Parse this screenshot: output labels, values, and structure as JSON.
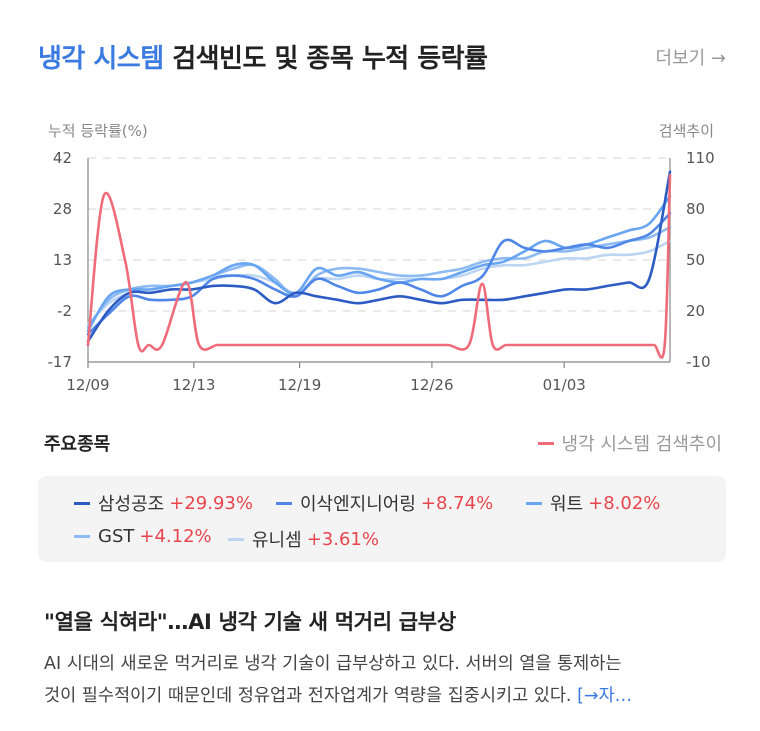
{
  "header": {
    "title_accent": "냉각 시스템",
    "title_rest": "검색빈도 및 종목 누적 등락률",
    "more_label": "더보기 →"
  },
  "chart_data": {
    "type": "line",
    "left_axis_label": "누적 등락률(%)",
    "right_axis_label": "검색추이",
    "left_ticks": [
      "42",
      "28",
      "13",
      "-2",
      "-17"
    ],
    "right_ticks": [
      "110",
      "80",
      "50",
      "20",
      "-10"
    ],
    "ylim_left": [
      -17,
      42
    ],
    "ylim_right": [
      -10,
      110
    ],
    "x_tick_labels": [
      "12/09",
      "12/13",
      "12/19",
      "12/26",
      "01/03"
    ],
    "x_tick_index": [
      0,
      4,
      8,
      13,
      18
    ],
    "grid": true,
    "search_series": {
      "name": "냉각 시스템 검색추이",
      "color": "#ef6b7a",
      "values": [
        0,
        88,
        50,
        0,
        0,
        0,
        37,
        0,
        0,
        0,
        0,
        0,
        0,
        0,
        0,
        0,
        0,
        0,
        0,
        0,
        0,
        36,
        0,
        0,
        0,
        0,
        0,
        0,
        0,
        0,
        0,
        0,
        0,
        0,
        0,
        0,
        0,
        0,
        0,
        100
      ],
      "x_index": [
        0,
        0.6,
        1.4,
        1.9,
        2.3,
        2.8,
        3.7,
        4.2,
        4.9,
        5.6,
        6.4,
        7.2,
        8.0,
        8.8,
        9.6,
        10.4,
        11.2,
        12.0,
        12.8,
        13.6,
        14.4,
        14.9,
        15.3,
        15.8,
        16.2,
        16.6,
        17.0,
        17.4,
        17.8,
        18.2,
        18.6,
        19.0,
        19.4,
        19.8,
        20.2,
        20.6,
        21.0,
        21.4,
        21.8,
        22.0
      ]
    },
    "stock_series": [
      {
        "name": "삼성공조",
        "change": "+29.93%",
        "color": "#2d5bc4",
        "values": [
          -11,
          -2,
          3,
          3,
          4,
          4,
          5,
          5,
          4,
          0,
          3,
          2,
          1,
          0,
          1,
          2,
          1,
          0,
          1,
          1,
          1,
          2,
          3,
          4,
          4,
          5,
          6,
          7,
          38
        ]
      },
      {
        "name": "이삭엔지니어링",
        "change": "+8.74%",
        "color": "#4f86e8",
        "values": [
          -9,
          -3,
          2,
          1,
          1,
          2,
          7,
          8,
          7,
          4,
          2,
          7,
          5,
          3,
          4,
          6,
          4,
          2,
          5,
          8,
          18,
          16,
          15,
          16,
          17,
          16,
          18,
          20,
          26
        ]
      },
      {
        "name": "워트",
        "change": "+8.02%",
        "color": "#68a5f2",
        "values": [
          -8,
          2,
          4,
          4,
          5,
          6,
          8,
          11,
          11,
          6,
          3,
          10,
          8,
          9,
          7,
          6,
          7,
          7,
          9,
          11,
          12,
          15,
          18,
          16,
          17,
          19,
          21,
          23,
          31
        ]
      },
      {
        "name": "GST",
        "change": "+4.12%",
        "color": "#8dbaf2",
        "values": [
          -7,
          1,
          4,
          5,
          5,
          6,
          8,
          10,
          11,
          7,
          2,
          8,
          10,
          10,
          9,
          8,
          8,
          9,
          10,
          12,
          13,
          13,
          15,
          15,
          16,
          17,
          18,
          19,
          22
        ]
      },
      {
        "name": "유니셈",
        "change": "+3.61%",
        "color": "#bcd5f3",
        "values": [
          -6,
          0,
          3,
          4,
          5,
          6,
          7,
          8,
          8,
          6,
          3,
          7,
          7,
          8,
          7,
          7,
          7,
          7,
          8,
          10,
          11,
          11,
          12,
          13,
          13,
          14,
          14,
          15,
          18
        ]
      }
    ]
  },
  "section": {
    "stocks_label": "주요종목",
    "search_legend_label": "냉각 시스템 검색추이"
  },
  "news": {
    "headline": "\"열을 식혀라\"…AI 냉각 기술 새 먹거리 급부상",
    "body_line1": "AI 시대의 새로운 먹거리로 냉각 기술이 급부상하고 있다. 서버의 열을 통제하는",
    "body_line2": "것이 필수적이기 때문인데 정유업과 전자업계가 역량을 집중시키고 있다.",
    "link_label": "[→자…"
  }
}
